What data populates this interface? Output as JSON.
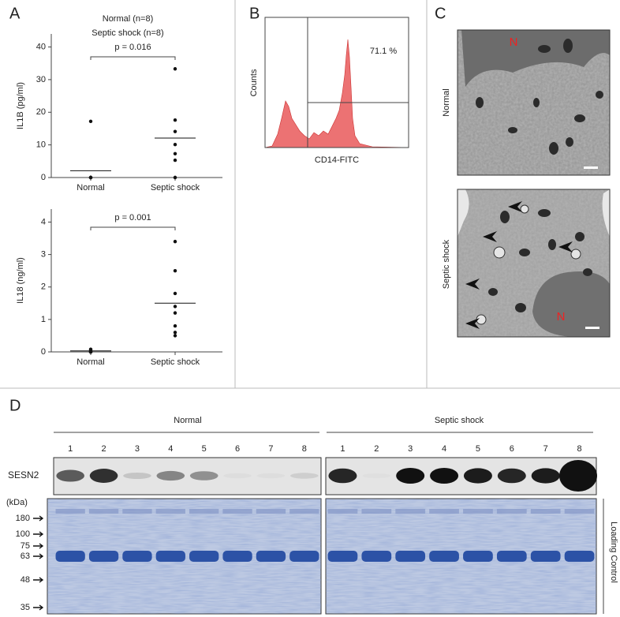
{
  "panel_labels": [
    "A",
    "B",
    "C",
    "D"
  ],
  "chart_data": [
    {
      "type": "dotplot",
      "title": [
        "Normal (n=8)",
        "Septic shock (n=8)"
      ],
      "ylabel": "IL1B (pg/ml)",
      "categories": [
        "Normal",
        "Septic shock"
      ],
      "values": [
        [
          17.2,
          0,
          0,
          0,
          0,
          0,
          0,
          0
        ],
        [
          33.3,
          17.6,
          14.1,
          10.1,
          7.3,
          5.3,
          0,
          0
        ]
      ],
      "means": [
        2.1,
        12.1
      ],
      "annotation": "p = 0.016",
      "ylim": [
        0,
        44
      ],
      "yticks": [
        0,
        10,
        20,
        30,
        40
      ]
    },
    {
      "type": "dotplot",
      "ylabel": "IL18 (ng/ml)",
      "categories": [
        "Normal",
        "Septic shock"
      ],
      "values": [
        [
          0.08,
          0.05,
          0.02,
          0,
          0,
          0,
          0,
          0
        ],
        [
          3.4,
          2.5,
          1.8,
          1.4,
          1.2,
          0.8,
          0.6,
          0.5
        ]
      ],
      "means": [
        0.03,
        1.5
      ],
      "annotation": "p = 0.001",
      "ylim": [
        0,
        4.4
      ],
      "yticks": [
        0,
        1,
        2,
        3,
        4
      ]
    }
  ],
  "flow": {
    "ylabel": "Counts",
    "xlabel": "CD14-FITC",
    "gate_label": "71.1 %"
  },
  "micrographs": {
    "labels": [
      "Normal",
      "Septic shock"
    ],
    "nucleus_label": "N"
  },
  "blot": {
    "groups": [
      "Normal",
      "Septic shock"
    ],
    "lanes": [
      "1",
      "2",
      "3",
      "4",
      "5",
      "6",
      "7",
      "8"
    ],
    "protein": "SESN2",
    "unit": "(kDa)",
    "markers": [
      180,
      100,
      75,
      63,
      48,
      35
    ],
    "loading_label": "Loading Control"
  }
}
